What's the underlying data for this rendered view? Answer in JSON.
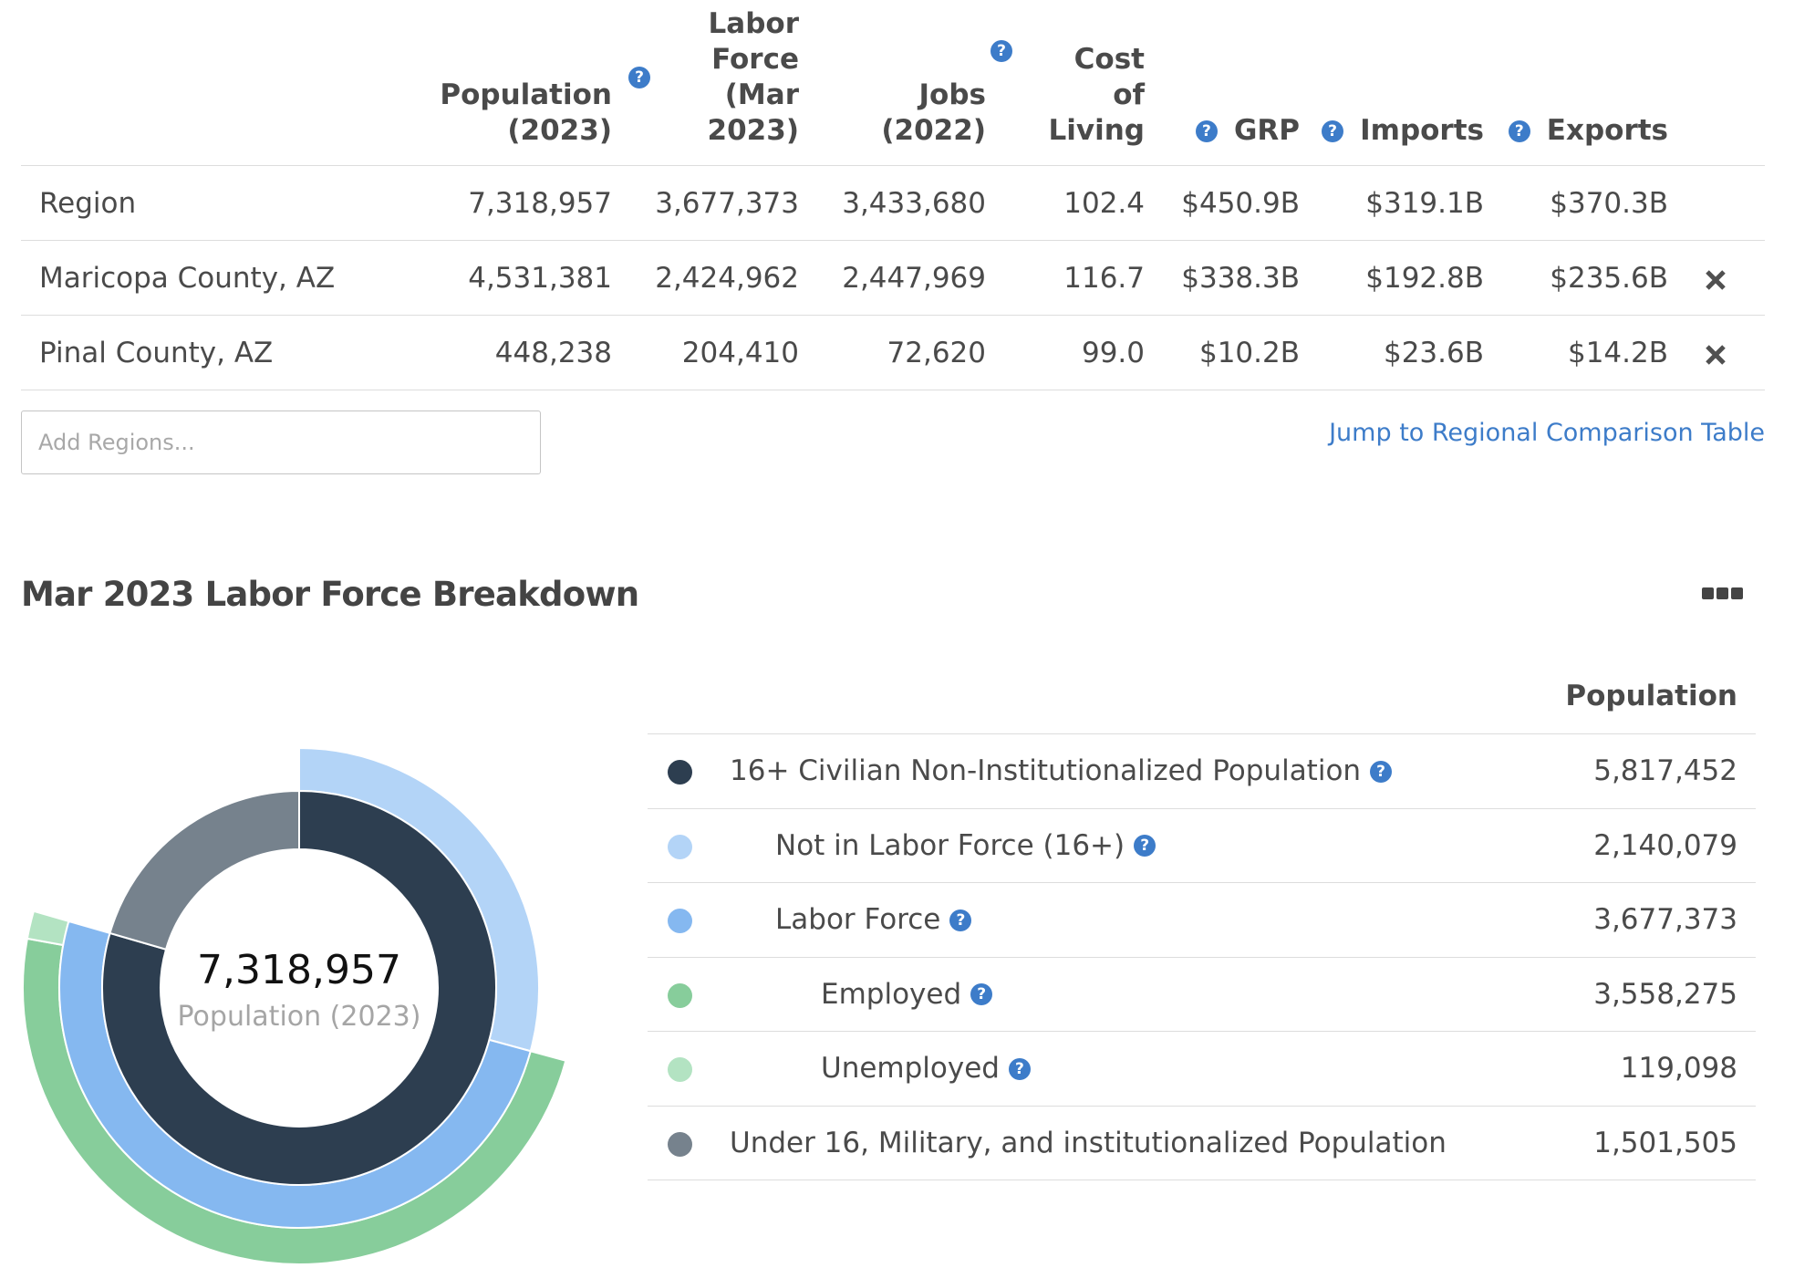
{
  "comparison_table": {
    "columns": [
      {
        "label": "Population (2023)",
        "has_help": true
      },
      {
        "label": "Labor Force (Mar 2023)",
        "has_help": false
      },
      {
        "label": "Jobs (2022)",
        "has_help": true
      },
      {
        "label": "Cost of Living",
        "has_help": true
      },
      {
        "label": "GRP",
        "has_help": true
      },
      {
        "label": "Imports",
        "has_help": true
      },
      {
        "label": "Exports",
        "has_help": false
      }
    ],
    "header_lines": {
      "population": [
        "Population",
        "(2023)"
      ],
      "labor_force": [
        "Labor",
        "Force",
        "(Mar",
        "2023)"
      ],
      "jobs": [
        "Jobs",
        "(2022)"
      ],
      "cost_of_living": [
        "Cost",
        "of",
        "Living"
      ],
      "grp": "GRP",
      "imports": "Imports",
      "exports": "Exports"
    },
    "rows": [
      {
        "name": "Region",
        "population": "7,318,957",
        "labor_force": "3,677,373",
        "jobs": "3,433,680",
        "cost_of_living": "102.4",
        "grp": "$450.9B",
        "imports": "$319.1B",
        "exports": "$370.3B",
        "removable": false
      },
      {
        "name": "Maricopa County, AZ",
        "population": "4,531,381",
        "labor_force": "2,424,962",
        "jobs": "2,447,969",
        "cost_of_living": "116.7",
        "grp": "$338.3B",
        "imports": "$192.8B",
        "exports": "$235.6B",
        "removable": true
      },
      {
        "name": "Pinal County, AZ",
        "population": "448,238",
        "labor_force": "204,410",
        "jobs": "72,620",
        "cost_of_living": "99.0",
        "grp": "$10.2B",
        "imports": "$23.6B",
        "exports": "$14.2B",
        "removable": true
      }
    ],
    "help_icon": "question-circle-icon",
    "remove_icon": "close-x-icon"
  },
  "add_regions": {
    "placeholder": "Add Regions...",
    "value": ""
  },
  "jump_link": "Jump to Regional Comparison Table",
  "breakdown": {
    "title": "Mar 2023 Labor Force Breakdown",
    "more_icon": "more-dots-icon",
    "center_value": "7,318,957",
    "center_label": "Population (2023)",
    "column_header": "Population",
    "items": [
      {
        "label": "16+ Civilian Non-Institutionalized Population",
        "value": "5,817,452",
        "color": "#2d3e50",
        "indent": 0,
        "has_help": true
      },
      {
        "label": "Not in Labor Force (16+)",
        "value": "2,140,079",
        "color": "#b3d4f7",
        "indent": 1,
        "has_help": true
      },
      {
        "label": "Labor Force",
        "value": "3,677,373",
        "color": "#85b8f0",
        "indent": 1,
        "has_help": true
      },
      {
        "label": "Employed",
        "value": "3,558,275",
        "color": "#87cd9b",
        "indent": 2,
        "has_help": true
      },
      {
        "label": "Unemployed",
        "value": "119,098",
        "color": "#b3e3c2",
        "indent": 2,
        "has_help": true
      },
      {
        "label": "Under 16, Military, and institutionalized Population",
        "value": "1,501,505",
        "color": "#76828d",
        "indent": 0,
        "has_help": false
      }
    ]
  },
  "colors": {
    "accent_link": "#3d7cc9",
    "help_icon_bg": "#3d7cc9",
    "divider": "#dddddd"
  }
}
